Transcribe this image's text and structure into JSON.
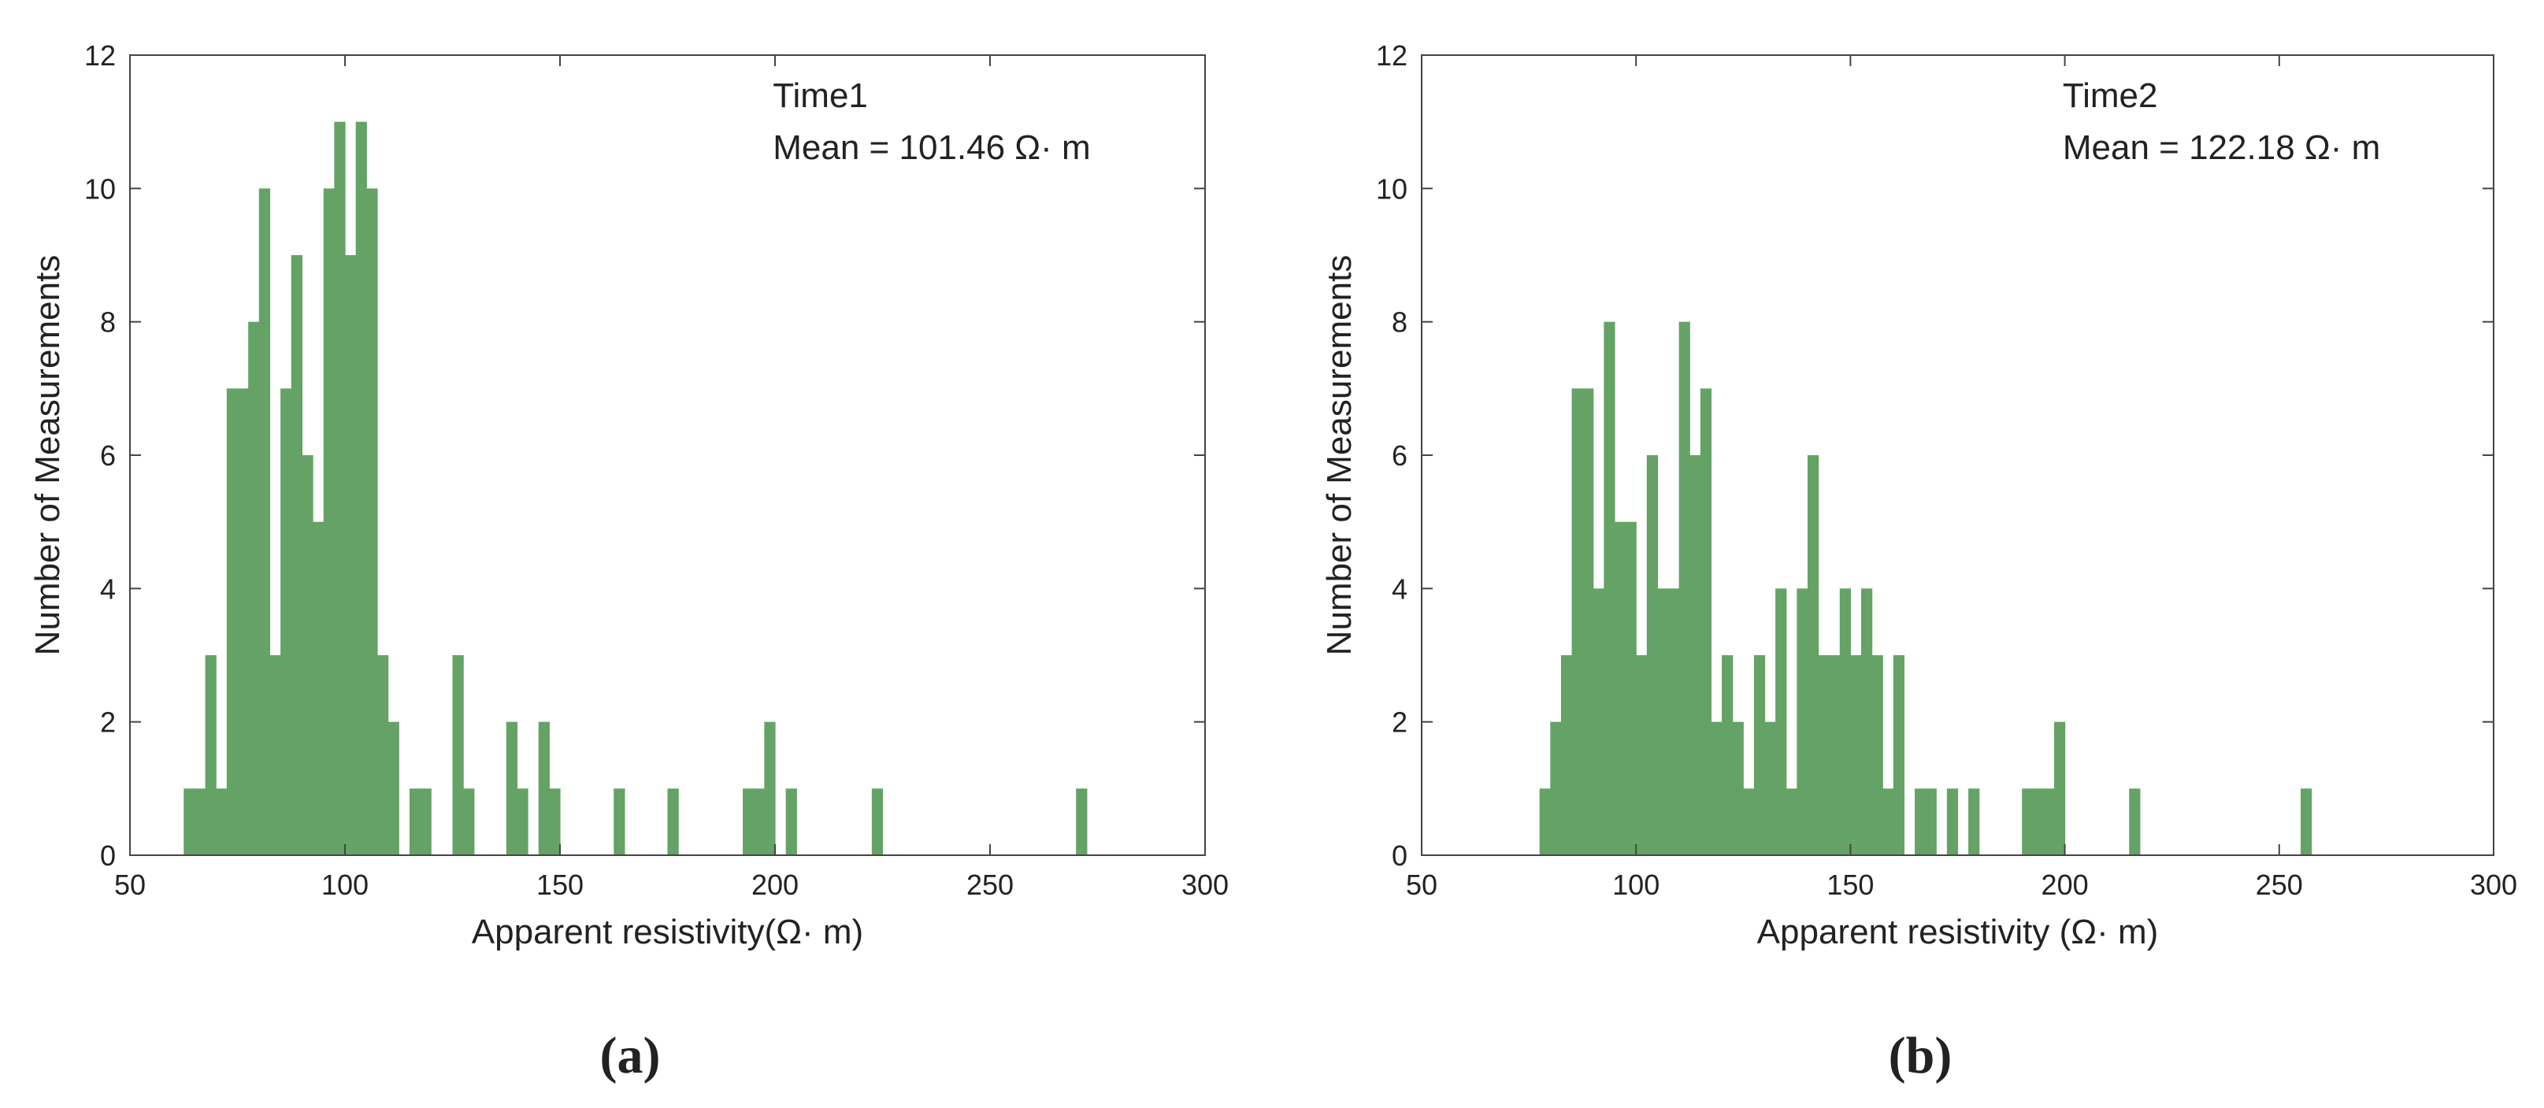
{
  "colors": {
    "bar": "#65a265",
    "axis": "#444444",
    "text": "#222222"
  },
  "chart_data": [
    {
      "type": "bar",
      "panel_label": "(a)",
      "annotation_title": "Time1",
      "annotation_mean": "Mean = 101.46   Ω· m",
      "xlabel": "Apparent resistivity(Ω· m)",
      "ylabel": "Number of Measurements",
      "xlim": [
        50,
        300
      ],
      "ylim": [
        0,
        12
      ],
      "xticks": [
        50,
        100,
        150,
        200,
        250,
        300
      ],
      "yticks": [
        0,
        2,
        4,
        6,
        8,
        10,
        12
      ],
      "grid": false,
      "bin_width": 2.5,
      "bins": [
        {
          "x": 62.5,
          "y": 1
        },
        {
          "x": 65,
          "y": 1
        },
        {
          "x": 67.5,
          "y": 3
        },
        {
          "x": 70,
          "y": 1
        },
        {
          "x": 72.5,
          "y": 7
        },
        {
          "x": 75,
          "y": 7
        },
        {
          "x": 77.5,
          "y": 8
        },
        {
          "x": 80,
          "y": 10
        },
        {
          "x": 82.5,
          "y": 3
        },
        {
          "x": 85,
          "y": 7
        },
        {
          "x": 87.5,
          "y": 9
        },
        {
          "x": 90,
          "y": 6
        },
        {
          "x": 92.5,
          "y": 5
        },
        {
          "x": 95,
          "y": 10
        },
        {
          "x": 97.5,
          "y": 11
        },
        {
          "x": 100,
          "y": 9
        },
        {
          "x": 102.5,
          "y": 11
        },
        {
          "x": 105,
          "y": 10
        },
        {
          "x": 107.5,
          "y": 3
        },
        {
          "x": 110,
          "y": 2
        },
        {
          "x": 115,
          "y": 1
        },
        {
          "x": 117.5,
          "y": 1
        },
        {
          "x": 125,
          "y": 3
        },
        {
          "x": 127.5,
          "y": 1
        },
        {
          "x": 137.5,
          "y": 2
        },
        {
          "x": 140,
          "y": 1
        },
        {
          "x": 145,
          "y": 2
        },
        {
          "x": 147.5,
          "y": 1
        },
        {
          "x": 162.5,
          "y": 1
        },
        {
          "x": 175,
          "y": 1
        },
        {
          "x": 192.5,
          "y": 1
        },
        {
          "x": 195,
          "y": 1
        },
        {
          "x": 197.5,
          "y": 2
        },
        {
          "x": 202.5,
          "y": 1
        },
        {
          "x": 222.5,
          "y": 1
        },
        {
          "x": 270,
          "y": 1
        }
      ]
    },
    {
      "type": "bar",
      "panel_label": "(b)",
      "annotation_title": "Time2",
      "annotation_mean": "Mean = 122.18 Ω· m",
      "xlabel": "Apparent resistivity (Ω· m)",
      "ylabel": "Number of Measurements",
      "xlim": [
        50,
        300
      ],
      "ylim": [
        0,
        12
      ],
      "xticks": [
        50,
        100,
        150,
        200,
        250,
        300
      ],
      "yticks": [
        0,
        2,
        4,
        6,
        8,
        10,
        12
      ],
      "grid": false,
      "bin_width": 2.5,
      "bins": [
        {
          "x": 77.5,
          "y": 1
        },
        {
          "x": 80,
          "y": 2
        },
        {
          "x": 82.5,
          "y": 3
        },
        {
          "x": 85,
          "y": 7
        },
        {
          "x": 87.5,
          "y": 7
        },
        {
          "x": 90,
          "y": 4
        },
        {
          "x": 92.5,
          "y": 8
        },
        {
          "x": 95,
          "y": 5
        },
        {
          "x": 97.5,
          "y": 5
        },
        {
          "x": 100,
          "y": 3
        },
        {
          "x": 102.5,
          "y": 6
        },
        {
          "x": 105,
          "y": 4
        },
        {
          "x": 107.5,
          "y": 4
        },
        {
          "x": 110,
          "y": 8
        },
        {
          "x": 112.5,
          "y": 6
        },
        {
          "x": 115,
          "y": 7
        },
        {
          "x": 117.5,
          "y": 2
        },
        {
          "x": 120,
          "y": 3
        },
        {
          "x": 122.5,
          "y": 2
        },
        {
          "x": 125,
          "y": 1
        },
        {
          "x": 127.5,
          "y": 3
        },
        {
          "x": 130,
          "y": 2
        },
        {
          "x": 132.5,
          "y": 4
        },
        {
          "x": 135,
          "y": 1
        },
        {
          "x": 137.5,
          "y": 4
        },
        {
          "x": 140,
          "y": 6
        },
        {
          "x": 142.5,
          "y": 3
        },
        {
          "x": 145,
          "y": 3
        },
        {
          "x": 147.5,
          "y": 4
        },
        {
          "x": 150,
          "y": 3
        },
        {
          "x": 152.5,
          "y": 4
        },
        {
          "x": 155,
          "y": 3
        },
        {
          "x": 157.5,
          "y": 1
        },
        {
          "x": 160,
          "y": 3
        },
        {
          "x": 165,
          "y": 1
        },
        {
          "x": 167.5,
          "y": 1
        },
        {
          "x": 172.5,
          "y": 1
        },
        {
          "x": 177.5,
          "y": 1
        },
        {
          "x": 190,
          "y": 1
        },
        {
          "x": 192.5,
          "y": 1
        },
        {
          "x": 195,
          "y": 1
        },
        {
          "x": 197.5,
          "y": 2
        },
        {
          "x": 215,
          "y": 1
        },
        {
          "x": 255,
          "y": 1
        }
      ]
    }
  ]
}
